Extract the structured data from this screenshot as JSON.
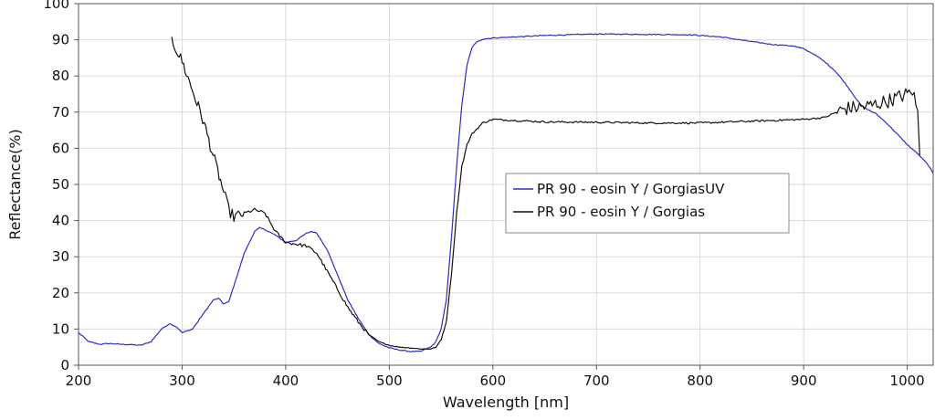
{
  "chart_data": {
    "type": "line",
    "title": "",
    "xlabel": "Wavelength [nm]",
    "ylabel": "Reflectance(%)",
    "xlim": [
      200,
      1025
    ],
    "ylim": [
      0,
      100
    ],
    "xticks": [
      200,
      300,
      400,
      500,
      600,
      700,
      800,
      900,
      1000
    ],
    "yticks": [
      0,
      10,
      20,
      30,
      40,
      50,
      60,
      70,
      80,
      90,
      100
    ],
    "grid": true,
    "legend_position": "center-right",
    "series": [
      {
        "name": "PR 90 - eosin Y / GorgiasUV",
        "color": "#2b2bc8",
        "x": [
          200,
          210,
          220,
          230,
          240,
          250,
          260,
          270,
          280,
          288,
          295,
          300,
          310,
          320,
          330,
          335,
          340,
          345,
          350,
          360,
          370,
          375,
          380,
          390,
          400,
          410,
          420,
          425,
          430,
          440,
          450,
          460,
          470,
          480,
          490,
          500,
          510,
          520,
          530,
          540,
          545,
          550,
          555,
          560,
          565,
          570,
          575,
          580,
          585,
          590,
          600,
          650,
          700,
          750,
          790,
          820,
          850,
          870,
          880,
          890,
          900,
          910,
          920,
          930,
          940,
          950,
          955,
          960,
          970,
          980,
          990,
          1000,
          1010,
          1020,
          1025
        ],
        "y": [
          9,
          6.5,
          5.8,
          6,
          5.8,
          5.7,
          5.5,
          6.5,
          10,
          11.5,
          10.5,
          9,
          10,
          14,
          18,
          18.5,
          17,
          17.5,
          22,
          31,
          37,
          38,
          37.5,
          36,
          34,
          34.5,
          36.5,
          37,
          36.5,
          32,
          25,
          18,
          13,
          8.5,
          6,
          4.8,
          4.2,
          3.8,
          3.8,
          5,
          6.5,
          10,
          18,
          35,
          55,
          72,
          83,
          88,
          89.5,
          90.2,
          90.5,
          91.2,
          91.6,
          91.5,
          91.4,
          90.8,
          89.5,
          88.7,
          88.5,
          88.3,
          87.5,
          86,
          84,
          81.5,
          78,
          74,
          72,
          71,
          69.5,
          67,
          64,
          61,
          58.5,
          55.5,
          53
        ]
      },
      {
        "name": "PR 90 - eosin Y / Gorgias",
        "color": "#111111",
        "x": [
          290,
          300,
          310,
          320,
          330,
          340,
          345,
          350,
          360,
          370,
          380,
          390,
          400,
          410,
          420,
          430,
          440,
          450,
          460,
          470,
          480,
          490,
          500,
          510,
          520,
          530,
          540,
          545,
          550,
          555,
          560,
          565,
          570,
          575,
          580,
          590,
          600,
          650,
          700,
          750,
          800,
          850,
          900,
          920,
          940,
          960,
          980,
          1000,
          1005,
          1010,
          1012
        ],
        "y": [
          90,
          84,
          76,
          68,
          58,
          48,
          43,
          41,
          42,
          43,
          42,
          37,
          34,
          33.5,
          33,
          31,
          26,
          21,
          16,
          12,
          8.5,
          6.5,
          5.5,
          5,
          4.8,
          4.5,
          4.5,
          5,
          7,
          12,
          25,
          42,
          55,
          61,
          64,
          67,
          68,
          67.3,
          67.2,
          67,
          67,
          67.5,
          68,
          68.5,
          71,
          71.5,
          73,
          75,
          76,
          70,
          58
        ]
      }
    ]
  }
}
